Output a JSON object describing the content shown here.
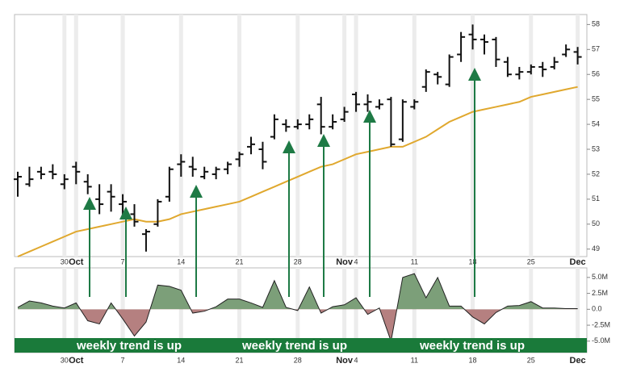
{
  "chart_data": [
    {
      "type": "ohlc",
      "categories": [
        null,
        null,
        null,
        null,
        "30",
        "Oct",
        null,
        null,
        null,
        "7",
        null,
        null,
        null,
        null,
        "14",
        null,
        null,
        null,
        null,
        "21",
        null,
        null,
        null,
        null,
        "28",
        null,
        null,
        null,
        "Nov",
        "4",
        null,
        null,
        null,
        null,
        "11",
        null,
        null,
        null,
        null,
        "18",
        null,
        null,
        null,
        null,
        "25",
        null,
        null,
        null,
        "Dec"
      ],
      "open": [
        51.8,
        51.6,
        52.1,
        52.1,
        51.6,
        52.3,
        51.7,
        51.0,
        51.3,
        50.8,
        50.4,
        49.6,
        50.0,
        51.1,
        52.4,
        52.3,
        51.9,
        52.0,
        52.2,
        52.6,
        53.1,
        53.0,
        53.5,
        54.0,
        53.9,
        54.0,
        54.8,
        53.9,
        54.2,
        55.2,
        54.8,
        54.7,
        55.0,
        53.4,
        54.7,
        55.5,
        56.0,
        55.6,
        56.8,
        57.6,
        57.4,
        57.4,
        56.5,
        56.0,
        56.1,
        56.3,
        56.3,
        56.8,
        56.9
      ],
      "high": [
        52.1,
        52.3,
        52.3,
        52.4,
        52.0,
        52.5,
        52.0,
        51.6,
        51.6,
        51.2,
        50.8,
        49.8,
        51.0,
        52.3,
        52.8,
        52.7,
        52.3,
        52.3,
        52.5,
        52.9,
        53.5,
        53.3,
        54.4,
        54.2,
        54.2,
        54.4,
        55.1,
        54.4,
        54.7,
        55.3,
        55.2,
        55.0,
        55.1,
        55.0,
        55.0,
        56.2,
        56.1,
        56.8,
        57.7,
        58.0,
        57.6,
        57.5,
        56.7,
        56.3,
        56.4,
        56.5,
        56.7,
        57.2,
        57.1
      ],
      "low": [
        51.1,
        51.5,
        51.8,
        51.8,
        51.4,
        51.6,
        51.2,
        50.4,
        50.5,
        50.3,
        49.9,
        48.9,
        49.9,
        50.9,
        51.9,
        51.9,
        51.8,
        51.8,
        52.0,
        52.3,
        52.8,
        52.2,
        53.4,
        53.7,
        53.8,
        53.8,
        53.6,
        53.8,
        54.1,
        54.5,
        54.5,
        54.6,
        53.1,
        53.3,
        54.6,
        55.3,
        55.6,
        55.5,
        56.5,
        57.0,
        56.8,
        56.3,
        55.9,
        55.8,
        56.0,
        55.9,
        56.2,
        56.7,
        56.4
      ],
      "close": [
        51.9,
        51.8,
        52.0,
        52.0,
        51.8,
        52.1,
        51.5,
        50.8,
        51.1,
        50.9,
        50.1,
        49.7,
        50.9,
        52.2,
        52.5,
        52.2,
        52.1,
        52.2,
        52.4,
        52.8,
        53.2,
        52.5,
        54.2,
        53.9,
        54.0,
        54.2,
        53.9,
        54.1,
        54.5,
        54.8,
        54.9,
        54.8,
        53.2,
        54.9,
        54.9,
        56.1,
        55.9,
        56.7,
        57.5,
        57.4,
        57.3,
        56.6,
        56.0,
        56.1,
        56.3,
        56.2,
        56.5,
        57.0,
        56.7
      ],
      "color": "#111111",
      "moving_average": {
        "color": "#e0a82e",
        "values": [
          48.7,
          48.9,
          49.1,
          49.3,
          49.5,
          49.7,
          49.8,
          49.9,
          50.0,
          50.1,
          50.2,
          50.1,
          50.1,
          50.2,
          50.4,
          50.5,
          50.6,
          50.7,
          50.8,
          50.9,
          51.1,
          51.3,
          51.5,
          51.7,
          51.9,
          52.1,
          52.3,
          52.4,
          52.6,
          52.8,
          52.9,
          53.0,
          53.1,
          53.1,
          53.3,
          53.5,
          53.8,
          54.1,
          54.3,
          54.5,
          54.6,
          54.7,
          54.8,
          54.9,
          55.1,
          55.2,
          55.3,
          55.4,
          55.5
        ]
      },
      "ylim": [
        48.7,
        58.4
      ],
      "yticks": [
        49,
        50,
        51,
        52,
        53,
        54,
        55,
        56,
        57,
        58
      ],
      "grid": true
    },
    {
      "type": "area",
      "categories": [
        null,
        null,
        null,
        null,
        "30",
        "Oct",
        null,
        null,
        null,
        "7",
        null,
        null,
        null,
        null,
        "14",
        null,
        null,
        null,
        null,
        "21",
        null,
        null,
        null,
        null,
        "28",
        null,
        null,
        null,
        "Nov",
        "4",
        null,
        null,
        null,
        null,
        "11",
        null,
        null,
        null,
        null,
        "18",
        null,
        null,
        null,
        null,
        "25",
        null,
        null,
        null,
        "Dec"
      ],
      "values": [
        300000,
        1300000,
        1000000,
        500000,
        200000,
        1000000,
        -1800000,
        -2300000,
        1000000,
        -1500000,
        -4200000,
        -2000000,
        3800000,
        3600000,
        3000000,
        -600000,
        -300000,
        400000,
        1600000,
        1600000,
        1000000,
        300000,
        4500000,
        300000,
        -200000,
        3500000,
        -600000,
        400000,
        700000,
        1800000,
        -800000,
        200000,
        -5000000,
        5000000,
        5600000,
        1800000,
        5000000,
        500000,
        500000,
        -1200000,
        -2300000,
        -500000,
        500000,
        600000,
        1200000,
        200000,
        200000,
        100000,
        100000
      ],
      "positive_color": "#7c9f79",
      "negative_color": "#b58080",
      "ylim": [
        -6800000,
        6500000
      ],
      "yticks": [
        {
          "value": 5000000,
          "label": "5.0M"
        },
        {
          "value": 2500000,
          "label": "2.5M"
        },
        {
          "value": 0,
          "label": "0.0"
        },
        {
          "value": -2500000,
          "label": "-2.5M"
        },
        {
          "value": -5000000,
          "label": "-5.0M"
        }
      ],
      "annotations": [
        "weekly trend is up",
        "weekly trend is up",
        "weekly trend is up"
      ],
      "grid": true
    }
  ]
}
